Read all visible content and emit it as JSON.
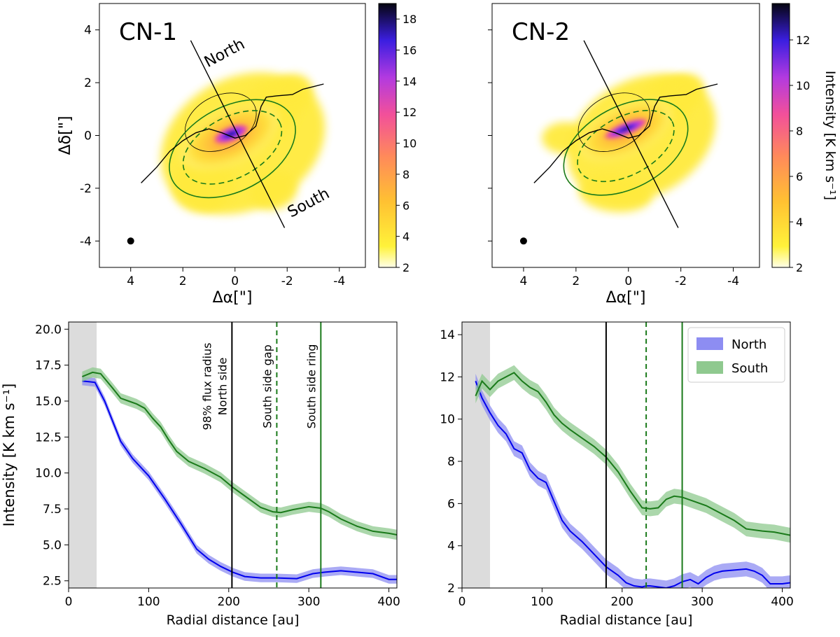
{
  "colors": {
    "north": "#0000ee",
    "south": "#1a7a1a",
    "north_band": "#8d8df2",
    "south_band": "#8fc98f",
    "inner_shade": "#dcdcdc"
  },
  "chart_data": [
    {
      "type": "heatmap",
      "title": "CN-1",
      "xlabel": "Δα[\"]",
      "ylabel": "Δδ[\"]",
      "xlim": [
        5.2,
        -5.0
      ],
      "ylim": [
        -5.0,
        5.0
      ],
      "xticks": [
        4,
        2,
        0,
        -2,
        -4
      ],
      "xtick_labels": [
        "4",
        "2",
        "0",
        "-2",
        "-4"
      ],
      "yticks": [
        4,
        2,
        0,
        -2,
        -4
      ],
      "ytick_labels": [
        "4",
        "2",
        "0",
        "-2",
        "-4"
      ],
      "colorbar": {
        "min": 2,
        "max": 19,
        "ticks": [
          2,
          4,
          6,
          8,
          10,
          12,
          14,
          16,
          18
        ],
        "label": ""
      },
      "annotations": {
        "north": "North",
        "south": "South"
      },
      "peak": 18.5
    },
    {
      "type": "heatmap",
      "title": "CN-2",
      "xlabel": "Δα[\"]",
      "ylabel": "",
      "xlim": [
        5.2,
        -5.0
      ],
      "ylim": [
        -5.0,
        5.0
      ],
      "xticks": [
        4,
        2,
        0,
        -2,
        -4
      ],
      "xtick_labels": [
        "4",
        "2",
        "0",
        "-2",
        "-4"
      ],
      "yticks": [
        4,
        2,
        0,
        -2,
        -4
      ],
      "colorbar": {
        "min": 2,
        "max": 13.6,
        "ticks": [
          2,
          4,
          6,
          8,
          10,
          12
        ],
        "label": "Intensity [K km s⁻¹]"
      },
      "peak": 13.4
    },
    {
      "type": "line",
      "xlabel": "Radial distance [au]",
      "ylabel": "Intensity [K km s⁻¹]",
      "xlim": [
        0,
        410
      ],
      "ylim": [
        2.0,
        20.5
      ],
      "xticks": [
        0,
        100,
        200,
        300,
        400
      ],
      "yticks": [
        2.5,
        5.0,
        7.5,
        10.0,
        12.5,
        15.0,
        17.5,
        20.0
      ],
      "ytick_labels": [
        "2.5",
        "5.0",
        "7.5",
        "10.0",
        "12.5",
        "15.0",
        "17.5",
        "20.0"
      ],
      "shaded_region": [
        0,
        35
      ],
      "series": [
        {
          "name": "North",
          "x": [
            17,
            33,
            45,
            65,
            80,
            100,
            120,
            140,
            160,
            175,
            190,
            205,
            220,
            240,
            260,
            285,
            305,
            320,
            340,
            360,
            380,
            400,
            410
          ],
          "y": [
            16.4,
            16.3,
            15.0,
            12.2,
            11.0,
            9.8,
            8.2,
            6.5,
            4.7,
            4.0,
            3.5,
            3.1,
            2.8,
            2.7,
            2.7,
            2.65,
            3.0,
            3.1,
            3.2,
            3.1,
            3.0,
            2.6,
            2.6
          ],
          "band": 0.3
        },
        {
          "name": "South",
          "x": [
            17,
            30,
            40,
            55,
            65,
            75,
            85,
            95,
            105,
            115,
            125,
            135,
            150,
            170,
            190,
            205,
            220,
            240,
            255,
            265,
            280,
            300,
            315,
            325,
            340,
            360,
            380,
            400,
            410
          ],
          "y": [
            16.7,
            17.0,
            16.9,
            15.9,
            15.2,
            15.0,
            14.8,
            14.5,
            13.8,
            13.2,
            12.3,
            11.5,
            10.8,
            10.3,
            9.7,
            9.0,
            8.4,
            7.6,
            7.3,
            7.25,
            7.45,
            7.65,
            7.55,
            7.3,
            6.8,
            6.3,
            5.95,
            5.8,
            5.7
          ],
          "band": 0.35
        }
      ],
      "vlines": [
        {
          "x": 204,
          "style": "solid",
          "color": "black",
          "label": "98% flux radius\nNorth side"
        },
        {
          "x": 260,
          "style": "dashed",
          "color": "green",
          "label": "South side gap"
        },
        {
          "x": 315,
          "style": "solid",
          "color": "green",
          "label": "South side ring"
        }
      ]
    },
    {
      "type": "line",
      "xlabel": "Radial distance [au]",
      "ylabel": "",
      "xlim": [
        0,
        410
      ],
      "ylim": [
        2.0,
        14.6
      ],
      "xticks": [
        0,
        100,
        200,
        300,
        400
      ],
      "yticks": [
        2,
        4,
        6,
        8,
        10,
        12,
        14
      ],
      "shaded_region": [
        0,
        35
      ],
      "legend": {
        "position": "top-right",
        "entries": [
          "North",
          "South"
        ]
      },
      "series": [
        {
          "name": "North",
          "x": [
            17,
            25,
            35,
            45,
            55,
            65,
            75,
            85,
            95,
            105,
            115,
            125,
            135,
            150,
            165,
            180,
            195,
            205,
            215,
            225,
            230,
            235,
            245,
            255,
            265,
            275,
            285,
            295,
            305,
            315,
            325,
            340,
            355,
            365,
            375,
            385,
            400,
            410
          ],
          "y": [
            11.8,
            11.0,
            10.3,
            9.7,
            9.3,
            8.6,
            8.4,
            7.6,
            7.2,
            7.0,
            6.1,
            5.2,
            4.7,
            4.2,
            3.6,
            3.0,
            2.6,
            2.25,
            2.1,
            2.05,
            2.1,
            2.1,
            2.05,
            2.0,
            2.1,
            2.3,
            2.4,
            2.2,
            2.5,
            2.7,
            2.8,
            2.85,
            2.9,
            2.8,
            2.6,
            2.2,
            2.2,
            2.25
          ],
          "band": 0.35
        },
        {
          "name": "South",
          "x": [
            17,
            25,
            35,
            45,
            55,
            65,
            75,
            85,
            95,
            105,
            115,
            125,
            135,
            150,
            165,
            180,
            195,
            210,
            225,
            235,
            245,
            255,
            265,
            275,
            290,
            305,
            320,
            340,
            355,
            375,
            390,
            410
          ],
          "y": [
            11.1,
            11.8,
            11.4,
            11.8,
            12.0,
            12.2,
            11.8,
            11.5,
            11.3,
            10.8,
            10.2,
            9.8,
            9.5,
            9.1,
            8.7,
            8.2,
            7.5,
            6.6,
            5.8,
            5.75,
            5.8,
            6.2,
            6.35,
            6.3,
            6.1,
            5.9,
            5.6,
            5.2,
            4.8,
            4.7,
            4.65,
            4.5
          ],
          "band": 0.35
        }
      ],
      "vlines": [
        {
          "x": 180,
          "style": "solid",
          "color": "black"
        },
        {
          "x": 230,
          "style": "dashed",
          "color": "green"
        },
        {
          "x": 275,
          "style": "solid",
          "color": "green"
        }
      ]
    }
  ]
}
